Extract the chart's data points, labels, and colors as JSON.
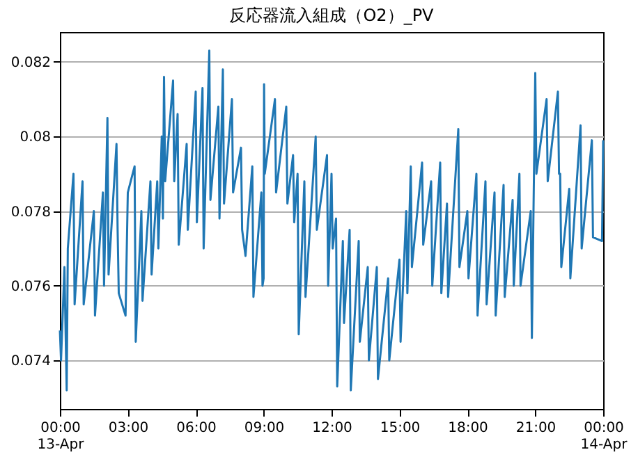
{
  "chart_data": {
    "type": "line",
    "title": "反応器流入組成（O2）_PV",
    "x": [
      0,
      0.05,
      0.2,
      0.3,
      0.35,
      0.6,
      0.65,
      1,
      1.05,
      1.5,
      1.55,
      1.9,
      1.95,
      2.1,
      2.15,
      2.5,
      2.55,
      2.6,
      2.9,
      3,
      3.3,
      3.35,
      3.6,
      3.65,
      4,
      4.05,
      4.3,
      4.35,
      4.5,
      4.55,
      4.6,
      4.65,
      5,
      5.05,
      5.2,
      5.25,
      5.6,
      5.65,
      6,
      6.05,
      6.3,
      6.35,
      6.6,
      6.65,
      7,
      7.05,
      7.2,
      7.25,
      7.6,
      7.65,
      8,
      8.05,
      8.2,
      8.5,
      8.55,
      8.9,
      8.95,
      9,
      9.02,
      9.05,
      9.5,
      9.55,
      10,
      10.05,
      10.3,
      10.35,
      10.5,
      10.55,
      10.8,
      10.85,
      11.3,
      11.35,
      11.8,
      11.85,
      12,
      12.05,
      12.2,
      12.25,
      12.5,
      12.55,
      12.8,
      12.85,
      13.2,
      13.25,
      13.6,
      13.65,
      14,
      14.05,
      14.5,
      14.55,
      15,
      15.05,
      15.3,
      15.35,
      15.5,
      15.55,
      16,
      16.05,
      16.4,
      16.45,
      16.8,
      16.85,
      17.1,
      17.15,
      17.6,
      17.65,
      18,
      18.05,
      18.4,
      18.45,
      18.8,
      18.85,
      19.2,
      19.25,
      19.6,
      19.65,
      20,
      20.05,
      20.3,
      20.35,
      20.8,
      20.85,
      21,
      21.05,
      21.5,
      21.55,
      22,
      22.05,
      22.1,
      22.15,
      22.5,
      22.55,
      23,
      23.05,
      23.5,
      23.55,
      23.95,
      24
    ],
    "series": [
      {
        "color": "#1f77b4",
        "values": [
          0.0748,
          0.074,
          0.0765,
          0.0732,
          0.077,
          0.079,
          0.0755,
          0.0788,
          0.0755,
          0.078,
          0.0752,
          0.0785,
          0.076,
          0.0805,
          0.0763,
          0.0798,
          0.0775,
          0.0758,
          0.0752,
          0.0785,
          0.0792,
          0.0745,
          0.078,
          0.0756,
          0.0788,
          0.0763,
          0.0788,
          0.077,
          0.08,
          0.0778,
          0.0816,
          0.0788,
          0.0815,
          0.0788,
          0.0806,
          0.0771,
          0.0798,
          0.0775,
          0.0812,
          0.0777,
          0.0813,
          0.077,
          0.0823,
          0.0783,
          0.0808,
          0.0778,
          0.0818,
          0.0782,
          0.081,
          0.0785,
          0.0797,
          0.0775,
          0.0768,
          0.0792,
          0.0757,
          0.0785,
          0.076,
          0.0762,
          0.0814,
          0.079,
          0.081,
          0.0785,
          0.0808,
          0.0782,
          0.0795,
          0.0777,
          0.079,
          0.0747,
          0.0788,
          0.0757,
          0.08,
          0.0775,
          0.0795,
          0.076,
          0.079,
          0.077,
          0.0778,
          0.0733,
          0.0772,
          0.075,
          0.0775,
          0.0732,
          0.0772,
          0.0745,
          0.0765,
          0.074,
          0.0765,
          0.0735,
          0.0762,
          0.074,
          0.0767,
          0.0745,
          0.078,
          0.0758,
          0.0792,
          0.0765,
          0.0793,
          0.0771,
          0.0788,
          0.076,
          0.0793,
          0.0758,
          0.0782,
          0.0757,
          0.0802,
          0.0765,
          0.078,
          0.0762,
          0.079,
          0.0752,
          0.0788,
          0.0755,
          0.0785,
          0.0752,
          0.0787,
          0.0757,
          0.0783,
          0.076,
          0.079,
          0.076,
          0.078,
          0.0746,
          0.0817,
          0.079,
          0.081,
          0.0788,
          0.0812,
          0.079,
          0.079,
          0.0765,
          0.0786,
          0.0762,
          0.0803,
          0.077,
          0.0799,
          0.0773,
          0.0772,
          0.0799
        ]
      }
    ],
    "xlim": [
      0,
      24
    ],
    "xticks": [
      {
        "value": 0,
        "label": "00:00\n13-Apr"
      },
      {
        "value": 3,
        "label": "03:00"
      },
      {
        "value": 6,
        "label": "06:00"
      },
      {
        "value": 9,
        "label": "09:00"
      },
      {
        "value": 12,
        "label": "12:00"
      },
      {
        "value": 15,
        "label": "15:00"
      },
      {
        "value": 18,
        "label": "18:00"
      },
      {
        "value": 21,
        "label": "21:00"
      },
      {
        "value": 24,
        "label": "00:00\n14-Apr"
      }
    ],
    "ylim": [
      0.0727,
      0.0828
    ],
    "yticks": [
      0.074,
      0.076,
      0.078,
      0.08,
      0.082
    ],
    "grid": "y",
    "line_style": "solid"
  }
}
